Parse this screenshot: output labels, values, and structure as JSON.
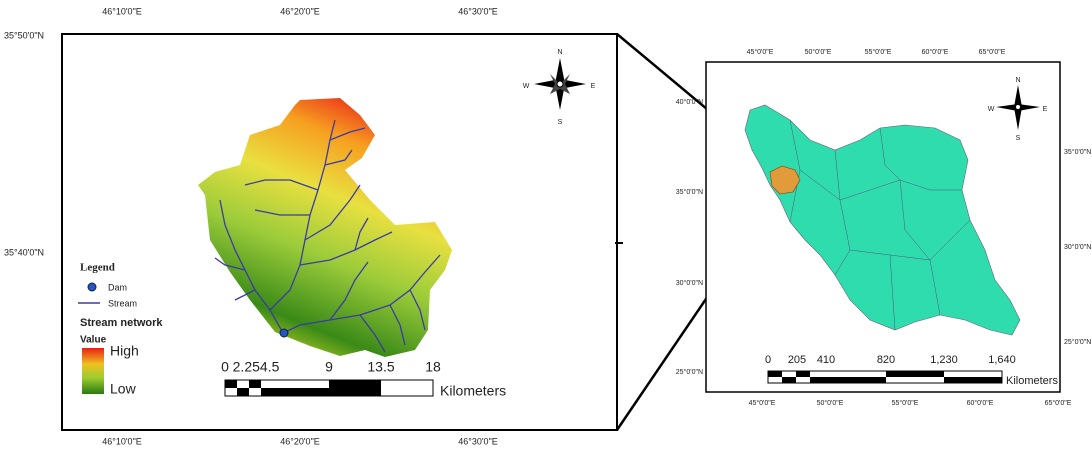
{
  "left_map": {
    "top_labels": [
      "46°10'0\"E",
      "46°20'0\"E",
      "46°30'0\"E"
    ],
    "bottom_labels": [
      "46°10'0\"E",
      "46°20'0\"E",
      "46°30'0\"E"
    ],
    "left_labels": [
      "35°50'0\"N",
      "35°40'0\"N"
    ],
    "compass": [
      "N",
      "E",
      "S",
      "W"
    ],
    "legend": {
      "title": "Legend",
      "items": [
        "Dam",
        "Stream"
      ],
      "raster_title": "Stream network",
      "value_label": "Value",
      "high": "High",
      "low": "Low"
    },
    "scale": {
      "labels": [
        "0",
        "2.254.5",
        "9",
        "13.5",
        "18"
      ],
      "unit": "Kilometers"
    }
  },
  "right_map": {
    "top_labels": [
      "45°0'0\"E",
      "50°0'0\"E",
      "55°0'0\"E",
      "60°0'0\"E",
      "65°0'0\"E"
    ],
    "bottom_labels": [
      "45°0'0\"E",
      "50°0'0\"E",
      "55°0'0\"E",
      "60°0'0\"E",
      "65°0'0\"E"
    ],
    "left_labels": [
      "40°0'0\"N",
      "35°0'0\"N",
      "30°0'0\"N",
      "25°0'0\"N"
    ],
    "right_labels": [
      "35°0'0\"N",
      "30°0'0\"N",
      "25°0'0\"N"
    ],
    "compass": [
      "N",
      "E",
      "S",
      "W"
    ],
    "scale": {
      "labels": [
        "0",
        "205",
        "410",
        "820",
        "1,230",
        "1,640"
      ],
      "unit": "Kilometers"
    }
  }
}
